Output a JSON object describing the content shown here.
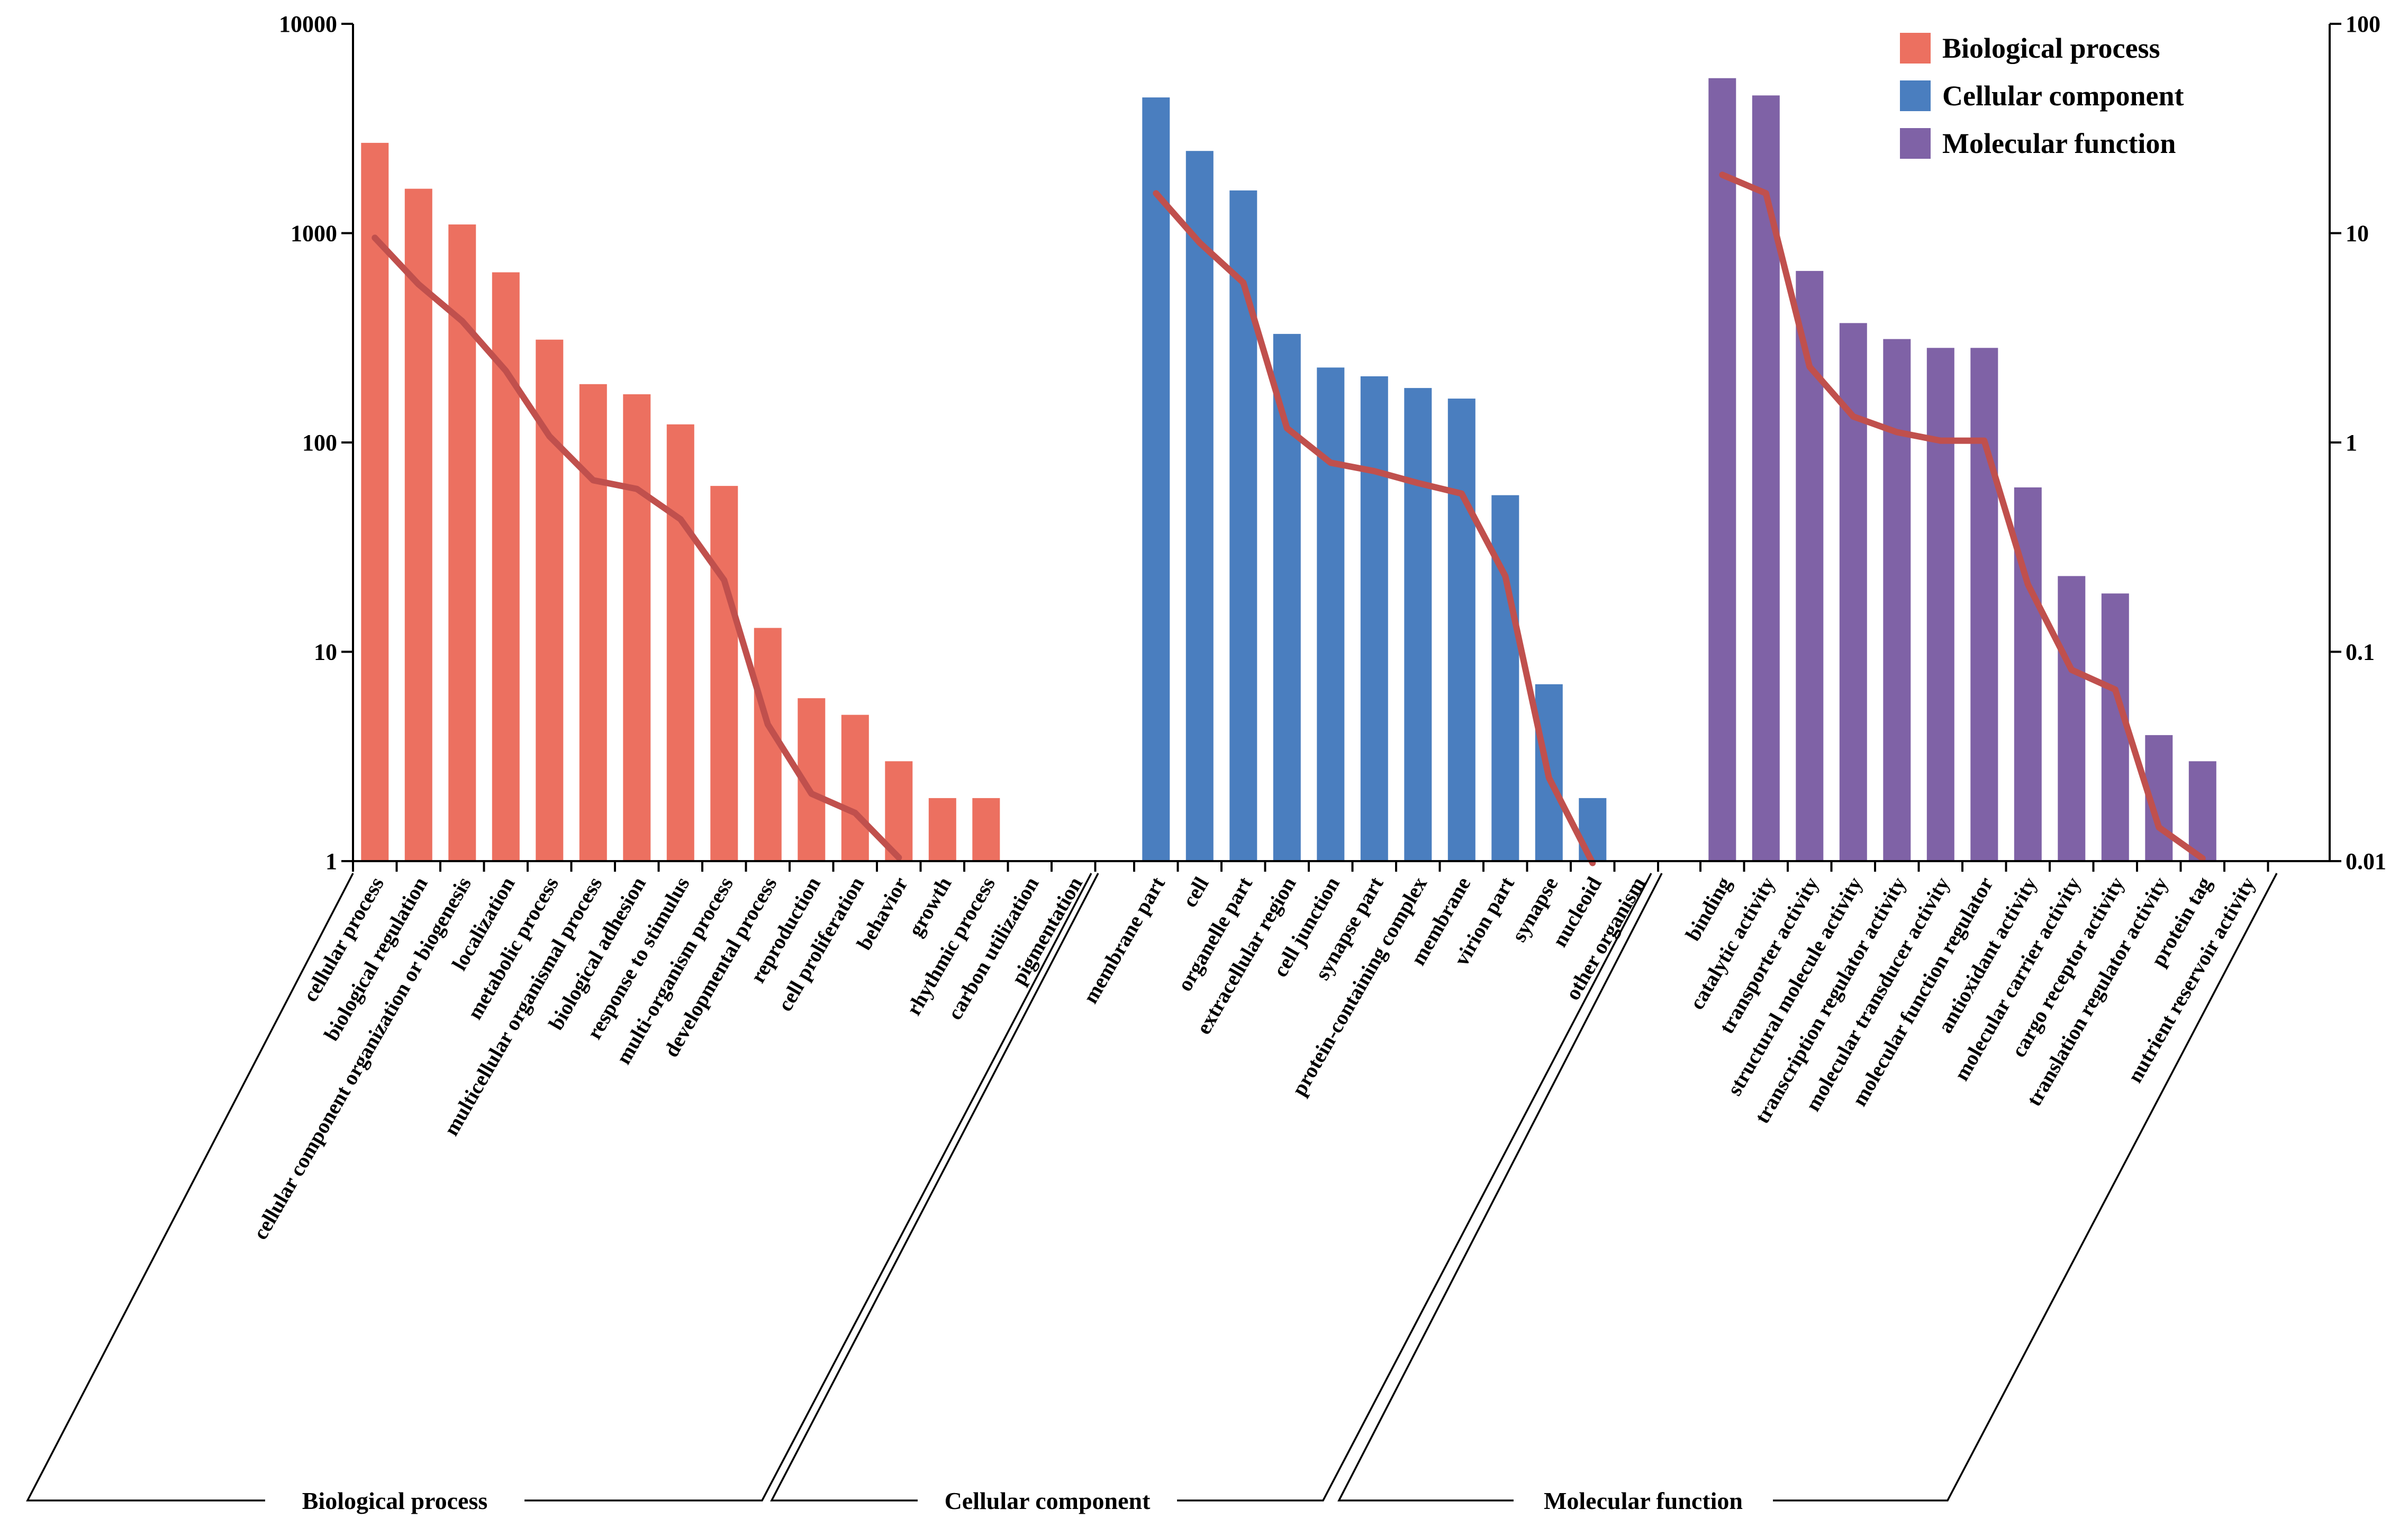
{
  "chart_data": {
    "type": "bar",
    "title": "",
    "xlabel": "",
    "ylabel": "",
    "y_scale": "log",
    "ylim": [
      1,
      10000
    ],
    "y_ticks": [
      "10000",
      "1000",
      "100",
      "10",
      "1"
    ],
    "y2_scale": "log",
    "y2lim": [
      0.01,
      100
    ],
    "y2_ticks": [
      "100",
      "10",
      "1",
      "0.1",
      "0.01"
    ],
    "legend_position": "top-right",
    "line_color": "#c0504d",
    "groups": [
      {
        "name": "Biological process",
        "color": "#ec7060",
        "categories": [
          "cellular process",
          "biological regulation",
          "cellular component organization or biogenesis",
          "localization",
          "metabolic process",
          "multicellular organismal process",
          "biological adhesion",
          "response to stimulus",
          "multi-organism process",
          "developmental process",
          "reproduction",
          "cell proliferation",
          "behavior",
          "growth",
          "rhythmic process",
          "carbon utilization",
          "pigmentation"
        ],
        "values": [
          2700,
          1630,
          1100,
          650,
          310,
          190,
          170,
          122,
          62,
          13,
          6,
          5,
          3,
          2,
          2,
          1,
          1
        ],
        "line_values": [
          9.5,
          5.7,
          3.8,
          2.2,
          1.07,
          0.66,
          0.6,
          0.43,
          0.22,
          0.045,
          0.021,
          0.017,
          0.0104,
          null,
          null,
          null,
          null
        ]
      },
      {
        "name": "Cellular component",
        "color": "#4a7ebf",
        "categories": [
          "membrane part",
          "cell",
          "organelle part",
          "extracellular region",
          "cell junction",
          "synapse part",
          "protein-containing complex",
          "membrane",
          "virion part",
          "synapse",
          "nucleoid",
          "other organism"
        ],
        "values": [
          4450,
          2470,
          1600,
          330,
          228,
          207,
          182,
          162,
          56,
          7,
          2,
          1
        ],
        "line_values": [
          15.5,
          9.0,
          5.8,
          1.17,
          0.8,
          0.73,
          0.64,
          0.57,
          0.23,
          0.025,
          0.0098,
          null
        ]
      },
      {
        "name": "Molecular function",
        "color": "#7f62a6",
        "categories": [
          "binding",
          "catalytic activity",
          "transporter activity",
          "structural molecule activity",
          "transcription regulator activity",
          "molecular transducer activity",
          "molecular function regulator",
          "antioxidant activity",
          "molecular carrier activity",
          "cargo receptor activity",
          "translation regulator activity",
          "protein tag",
          "nutrient reservoir activity"
        ],
        "values": [
          5500,
          4550,
          660,
          372,
          312,
          283,
          283,
          61,
          23,
          19,
          4,
          3,
          1
        ],
        "line_values": [
          19,
          15.5,
          2.3,
          1.33,
          1.12,
          1.02,
          1.02,
          0.21,
          0.082,
          0.066,
          0.0145,
          0.0103,
          null
        ]
      }
    ]
  }
}
